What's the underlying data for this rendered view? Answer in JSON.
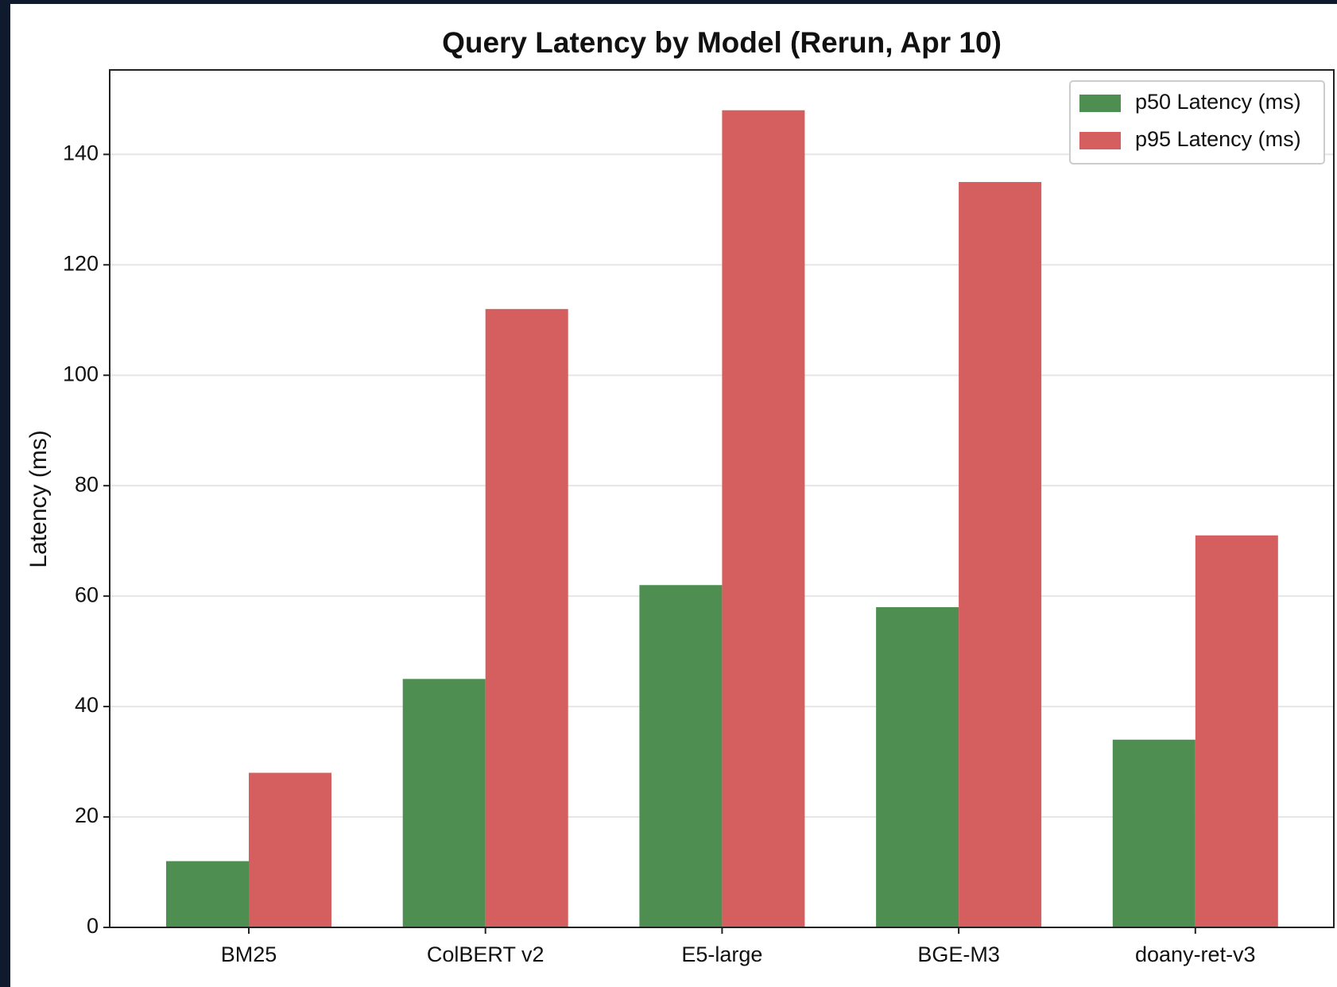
{
  "chart_data": {
    "type": "bar",
    "title": "Query Latency by Model (Rerun, Apr 10)",
    "y_label": "Latency (ms)",
    "categories": [
      "BM25",
      "ColBERT v2",
      "E5-large",
      "BGE-M3",
      "doany-ret-v3"
    ],
    "series": [
      {
        "name": "p50 Latency (ms)",
        "color": "#4e8f51",
        "values": [
          12,
          45,
          62,
          58,
          34
        ]
      },
      {
        "name": "p95 Latency (ms)",
        "color": "#d55f5f",
        "values": [
          28,
          112,
          148,
          135,
          71
        ]
      }
    ],
    "ylim": [
      0,
      155.3
    ],
    "yticks": [
      0,
      20,
      40,
      60,
      80,
      100,
      120,
      140
    ],
    "grid": true,
    "legend": "upper right"
  }
}
